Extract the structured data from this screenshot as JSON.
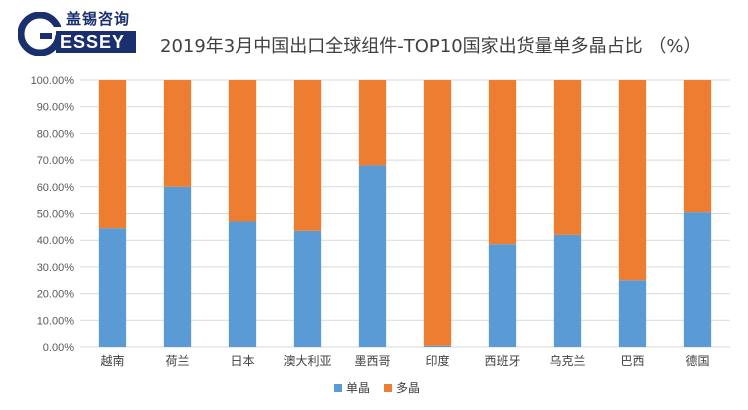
{
  "logo": {
    "cn_name": "盖锡咨询",
    "en_name": "ESSEY",
    "letter": "G"
  },
  "colors": {
    "mono": "#5b9bd5",
    "multi": "#ed7d31",
    "grid": "#d9d9d9",
    "brand": "#1a2f6e"
  },
  "chart_data": {
    "type": "bar",
    "stacked": true,
    "title": "2019年3月中国出口全球组件-TOP10国家出货量单多晶占比 （%）",
    "categories": [
      "越南",
      "荷兰",
      "日本",
      "澳大利亚",
      "墨西哥",
      "印度",
      "西班牙",
      "乌克兰",
      "巴西",
      "德国"
    ],
    "series": [
      {
        "name": "单晶",
        "values": [
          44.5,
          60.0,
          47.0,
          43.5,
          68.0,
          0.5,
          38.5,
          42.0,
          25.0,
          50.5
        ]
      },
      {
        "name": "多晶",
        "values": [
          55.5,
          40.0,
          53.0,
          56.5,
          32.0,
          99.5,
          61.5,
          58.0,
          75.0,
          49.5
        ]
      }
    ],
    "ylim": [
      0,
      100
    ],
    "yticks": [
      "0.00%",
      "10.00%",
      "20.00%",
      "30.00%",
      "40.00%",
      "50.00%",
      "60.00%",
      "70.00%",
      "80.00%",
      "90.00%",
      "100.00%"
    ],
    "legend_position": "bottom",
    "grid": true
  }
}
